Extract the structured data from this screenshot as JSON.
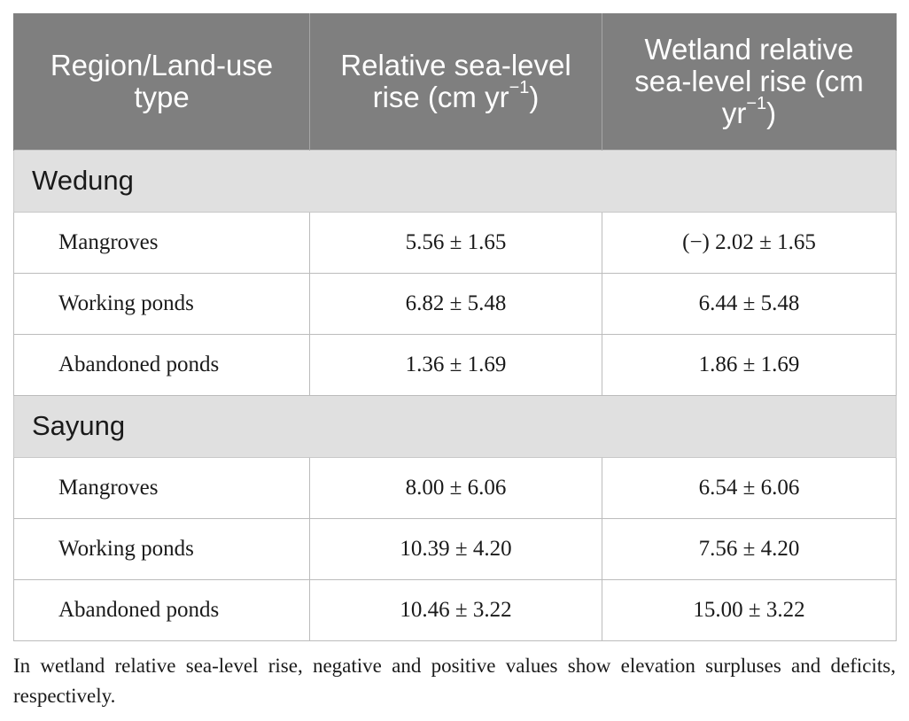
{
  "table": {
    "headers": {
      "col1": "Region/Land-use type",
      "col2": {
        "text": "Relative sea-level rise (cm yr",
        "sup": "−1",
        "close": ")"
      },
      "col3": {
        "text": "Wetland relative sea-level rise (cm yr",
        "sup": "−1",
        "close": ")"
      }
    },
    "groups": [
      {
        "name": "Wedung",
        "rows": [
          {
            "type": "Mangroves",
            "rslr": "5.56 ± 1.65",
            "wrslr": "(−) 2.02 ± 1.65"
          },
          {
            "type": "Working ponds",
            "rslr": "6.82 ± 5.48",
            "wrslr": "6.44 ± 5.48"
          },
          {
            "type": "Abandoned ponds",
            "rslr": "1.36 ± 1.69",
            "wrslr": "1.86 ± 1.69"
          }
        ]
      },
      {
        "name": "Sayung",
        "rows": [
          {
            "type": "Mangroves",
            "rslr": "8.00 ± 6.06",
            "wrslr": "6.54 ± 6.06"
          },
          {
            "type": "Working ponds",
            "rslr": "10.39 ± 4.20",
            "wrslr": "7.56 ± 4.20"
          },
          {
            "type": "Abandoned ponds",
            "rslr": "10.46 ± 3.22",
            "wrslr": "15.00 ± 3.22"
          }
        ]
      }
    ]
  },
  "footnote": "In wetland relative sea-level rise, negative and positive values show elevation surpluses and deficits, respectively.",
  "colors": {
    "header_bg": "#7f7f7f",
    "header_text": "#ffffff",
    "group_bg": "#e0e0e0",
    "grid": "#bcbcbc"
  }
}
